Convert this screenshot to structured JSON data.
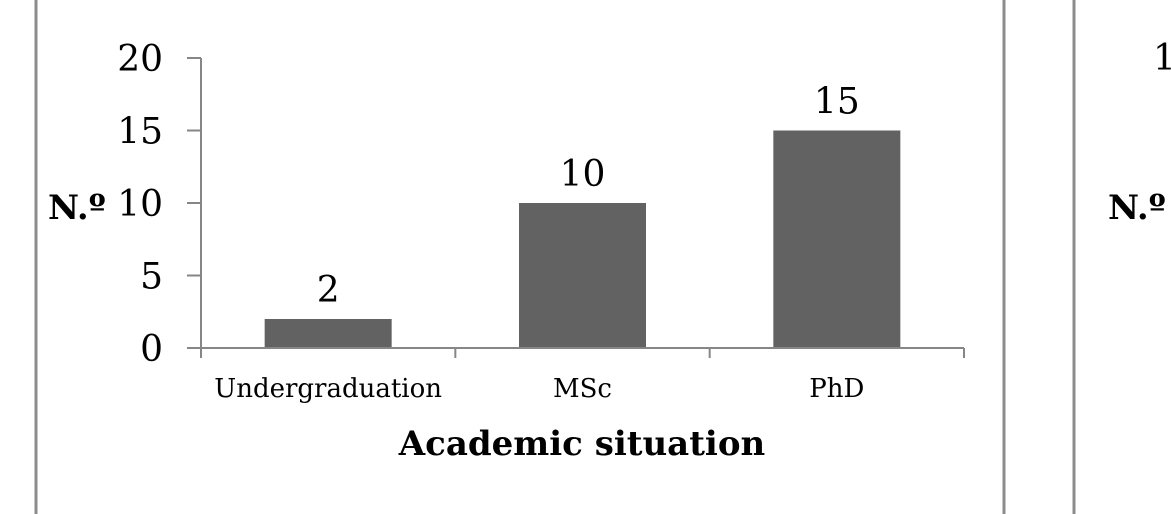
{
  "chart_data": [
    {
      "type": "bar",
      "title": "",
      "xlabel": "Academic situation",
      "ylabel": "N.º",
      "categories": [
        "Undergraduation",
        "MSc",
        "PhD"
      ],
      "values": [
        2,
        10,
        15
      ],
      "data_labels": [
        "2",
        "10",
        "15"
      ],
      "ylim": [
        0,
        20
      ],
      "yticks": [
        "0",
        "5",
        "10",
        "15",
        "20"
      ],
      "grid": false,
      "legend": "none",
      "bar_color": "#626262",
      "axis_color": "#868686"
    },
    {
      "partial": true,
      "ylabel": "N.º",
      "yticks_visible": [
        "1"
      ]
    }
  ],
  "colors": {
    "frame": "#8c8c8c",
    "bar": "#626262",
    "axis": "#868686"
  }
}
